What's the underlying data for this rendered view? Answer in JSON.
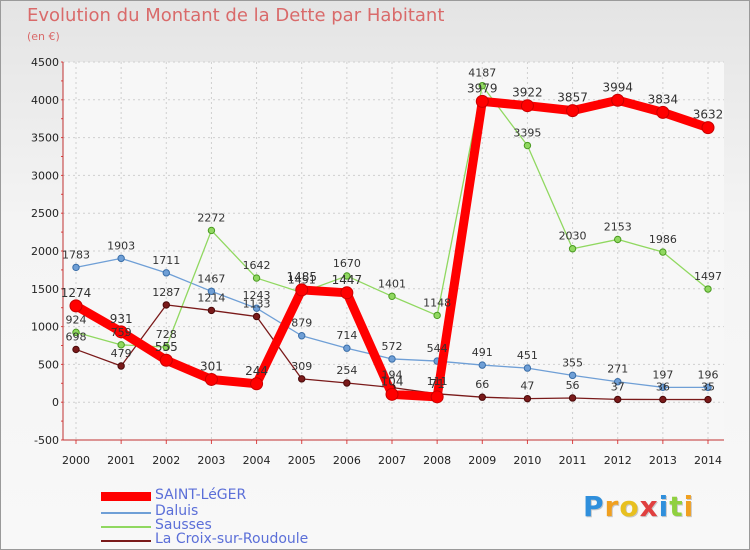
{
  "header": {
    "title": "Evolution du Montant de la Dette par Habitant",
    "subtitle": "(en €)"
  },
  "chart_data": {
    "type": "line",
    "title": "Evolution du Montant de la Dette par Habitant",
    "subtitle": "(en €)",
    "xlabel": "",
    "ylabel": "",
    "x": [
      "2000",
      "2001",
      "2002",
      "2003",
      "2004",
      "2005",
      "2006",
      "2007",
      "2008",
      "2009",
      "2010",
      "2011",
      "2012",
      "2013",
      "2014"
    ],
    "ylim": [
      -500,
      4500
    ],
    "yticks": [
      "-500",
      "0",
      "500",
      "1000",
      "1500",
      "2000",
      "2500",
      "3000",
      "3500",
      "4000",
      "4500"
    ],
    "grid": true,
    "legend_position": "bottom-left",
    "series": [
      {
        "name": "SAINT-LéGER",
        "color": "#ff0000",
        "values": [
          1274,
          931,
          555,
          301,
          244,
          1485,
          1447,
          104,
          71,
          3979,
          3922,
          3857,
          3994,
          3834,
          3632
        ],
        "labels": [
          "1274",
          "931",
          "555",
          "301",
          "244",
          "1485",
          "1447",
          "104",
          "71",
          "3979",
          "3922",
          "3857",
          "3994",
          "3834",
          "3632"
        ]
      },
      {
        "name": "Daluis",
        "color": "#6f9fd6",
        "values": [
          1783,
          1903,
          1711,
          1467,
          1243,
          879,
          714,
          572,
          544,
          491,
          451,
          355,
          271,
          197,
          196
        ],
        "labels": [
          "1783",
          "1903",
          "1711",
          "1467",
          "1243",
          "879",
          "714",
          "572",
          "544",
          "491",
          "451",
          "355",
          "271",
          "197",
          "196"
        ]
      },
      {
        "name": "Sausses",
        "color": "#90d860",
        "values": [
          924,
          759,
          728,
          2272,
          1642,
          1451,
          1670,
          1401,
          1148,
          4187,
          3395,
          2030,
          2153,
          1986,
          1497
        ],
        "labels": [
          "924",
          "759",
          "728",
          "2272",
          "1642",
          "1451",
          "1670",
          "1401",
          "1148",
          "4187",
          "3395",
          "2030",
          "2153",
          "1986",
          "1497"
        ]
      },
      {
        "name": "La Croix-sur-Roudoule",
        "color": "#7a1a1a",
        "values": [
          698,
          479,
          1287,
          1214,
          1133,
          309,
          254,
          194,
          111,
          66,
          47,
          56,
          37,
          36,
          35
        ],
        "labels": [
          "698",
          "479",
          "1287",
          "1214",
          "1133",
          "309",
          "254",
          "194",
          "111",
          "66",
          "47",
          "56",
          "37",
          "36",
          "35"
        ]
      }
    ]
  },
  "legend": {
    "items": [
      {
        "label": "SAINT-LéGER",
        "color": "#ff0000"
      },
      {
        "label": "Daluis",
        "color": "#6f9fd6"
      },
      {
        "label": "Sausses",
        "color": "#90d860"
      },
      {
        "label": "La Croix-sur-Roudoule",
        "color": "#7a1a1a"
      }
    ]
  },
  "logo": {
    "letters": [
      "P",
      "r",
      "o",
      "x",
      "i",
      "t",
      "i"
    ],
    "colors": [
      "#2f8fdc",
      "#f0a020",
      "#e8c020",
      "#e04040",
      "#2f8fdc",
      "#90d040",
      "#f0a020"
    ]
  }
}
